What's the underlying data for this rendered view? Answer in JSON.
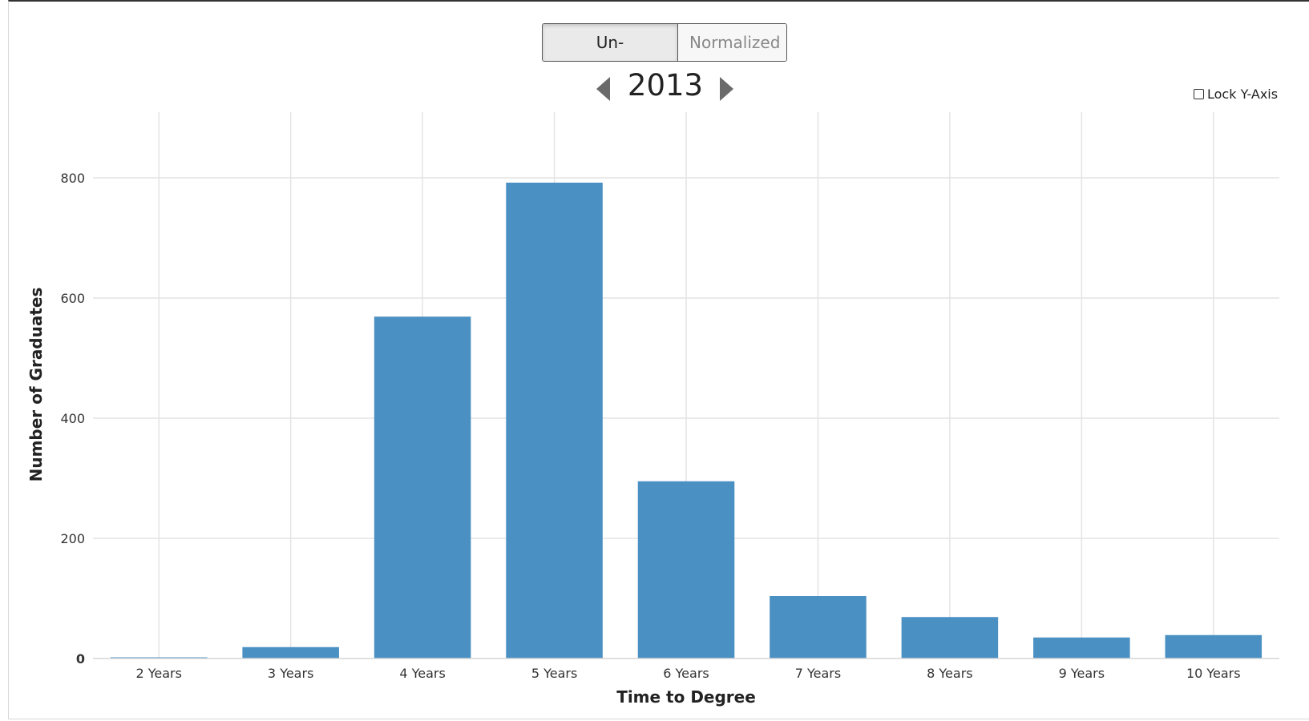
{
  "controls": {
    "toggle_options": [
      {
        "label": "Un-Normalized",
        "active": true
      },
      {
        "label": "Normalized",
        "active": false
      }
    ],
    "year": "2013",
    "prev_icon": "triangle-left-icon",
    "next_icon": "triangle-right-icon",
    "lock_axis_label": "Lock Y-Axis",
    "lock_axis_checked": false
  },
  "chart_data": {
    "type": "bar",
    "categories": [
      "2 Years",
      "3 Years",
      "4 Years",
      "5 Years",
      "6 Years",
      "7 Years",
      "8 Years",
      "9 Years",
      "10 Years"
    ],
    "values": [
      2,
      19,
      569,
      792,
      295,
      104,
      69,
      35,
      39
    ],
    "xlabel": "Time to Degree",
    "ylabel": "Number of Graduates",
    "ylim": [
      0,
      900
    ],
    "yticks": [
      0,
      200,
      400,
      600,
      800
    ],
    "grid": true,
    "bar_color": "#4a90c2"
  }
}
